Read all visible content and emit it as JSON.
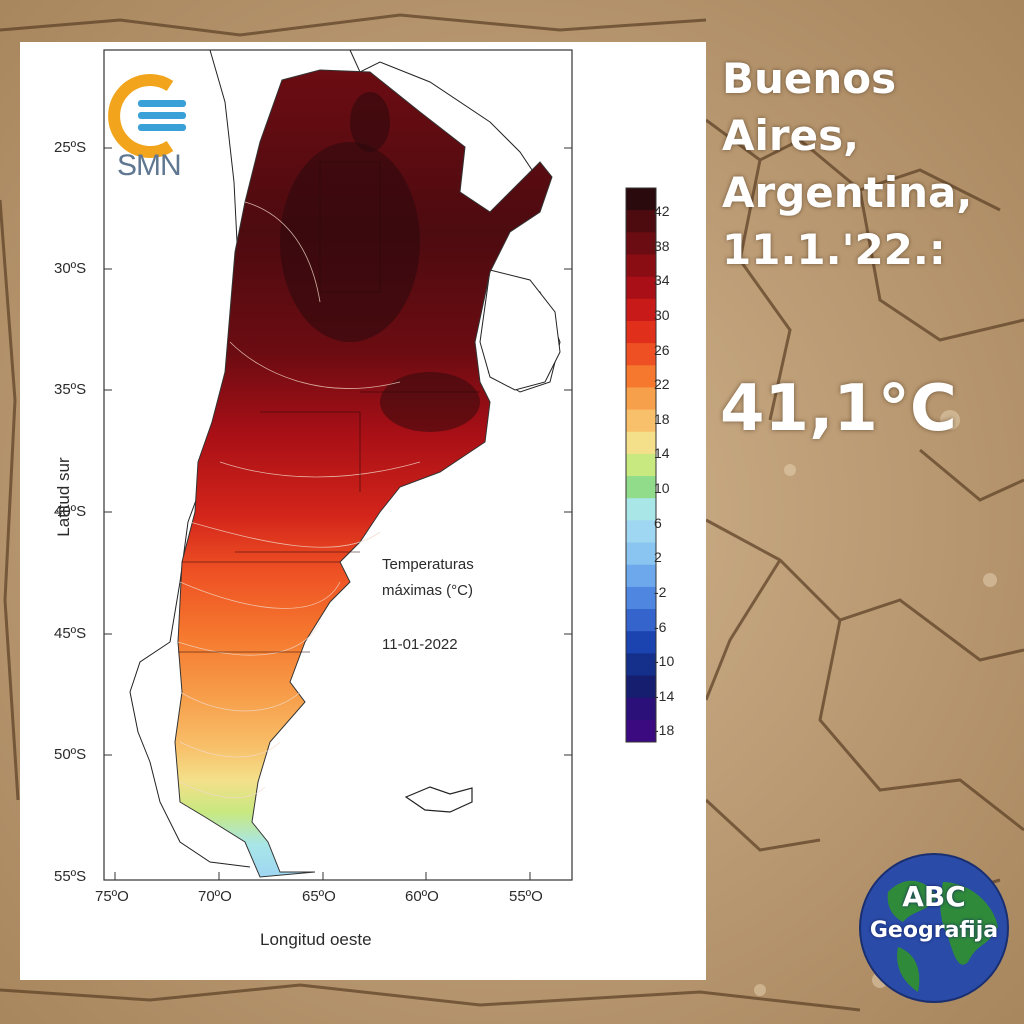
{
  "headline": {
    "line1": "Buenos",
    "line2": "Aires,",
    "line3": "Argentina,",
    "line4": "11.1.'22.:",
    "temperature": "41,1°C"
  },
  "map": {
    "agency": "SMN",
    "title_line1": "Temperaturas",
    "title_line2": "máximas (°C)",
    "date": "11-01-2022",
    "y_axis_label": "Latitud sur",
    "x_axis_label": "Longitud oeste",
    "lat_ticks": [
      "25ºS",
      "30ºS",
      "35ºS",
      "40ºS",
      "45ºS",
      "50ºS",
      "55ºS"
    ],
    "lon_ticks": [
      "75ºO",
      "70ºO",
      "65ºO",
      "60ºO",
      "55ºO"
    ],
    "legend_labels": [
      "42",
      "38",
      "34",
      "30",
      "26",
      "22",
      "18",
      "14",
      "10",
      "6",
      "2",
      "-2",
      "-6",
      "-10",
      "-14",
      "-18"
    ],
    "legend_colors": [
      "#2a0a0c",
      "#4d0b10",
      "#6b0c12",
      "#8a0d14",
      "#a80f16",
      "#c81a18",
      "#e0301c",
      "#ee5024",
      "#f5782e",
      "#f7a04c",
      "#f8c06a",
      "#f4e08a",
      "#c8e880",
      "#90dc8a",
      "#a8e6e8",
      "#9fd6f2",
      "#8ac4f0",
      "#6ea8ec",
      "#4f86e0",
      "#3464cc",
      "#1c44b0",
      "#15308a",
      "#161e70",
      "#2a1078",
      "#3c0a80"
    ],
    "brand_colors": {
      "smn_orange": "#f2a51c",
      "smn_blue": "#3aa0d8"
    }
  },
  "badge": {
    "line1": "ABC",
    "line2": "Geografija"
  }
}
